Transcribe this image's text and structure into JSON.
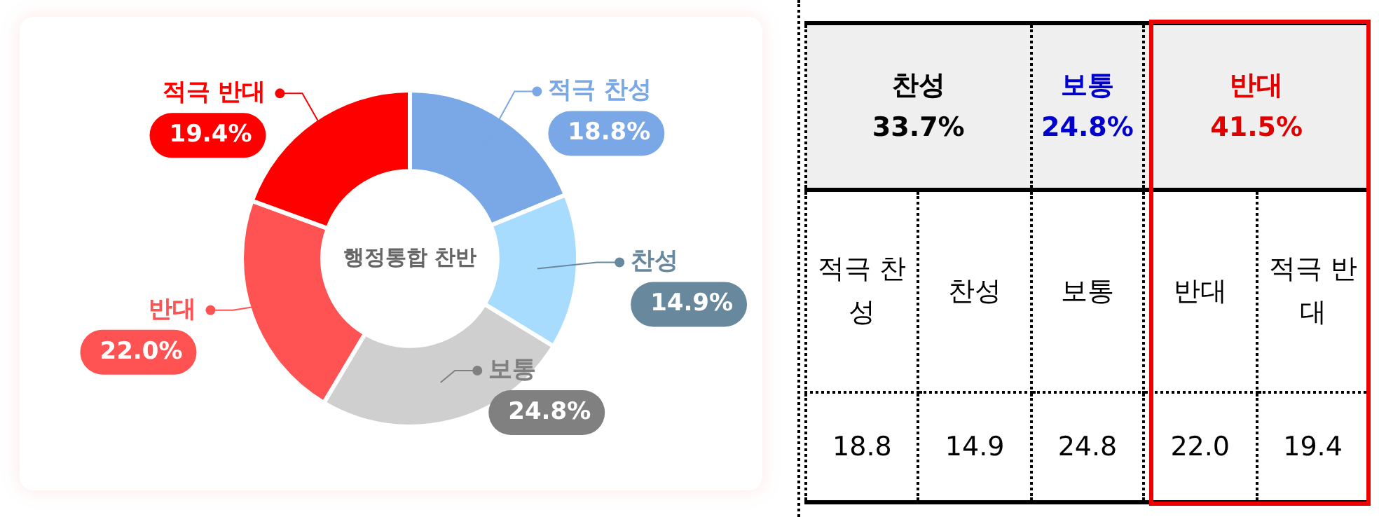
{
  "chart_data": {
    "type": "donut",
    "title": "행정통합 찬반",
    "categories": [
      "적극 찬성",
      "찬성",
      "보통",
      "반대",
      "적극 반대"
    ],
    "values": [
      18.8,
      14.9,
      24.8,
      22.0,
      19.4
    ],
    "colors": [
      "#7aa7e6",
      "#a8dcff",
      "#d0cfd0",
      "#ff5252",
      "#ff0000"
    ],
    "value_labels": [
      "18.8%",
      "14.9%",
      "24.8%",
      "22.0%",
      "19.4%"
    ],
    "legend": "right",
    "data_labels": true,
    "annotations": [
      "찬성 33.7%",
      "보통 24.8%",
      "반대 41.5%",
      "18.8",
      "14.9",
      "24.8",
      "22.0",
      "19.4"
    ]
  }
}
